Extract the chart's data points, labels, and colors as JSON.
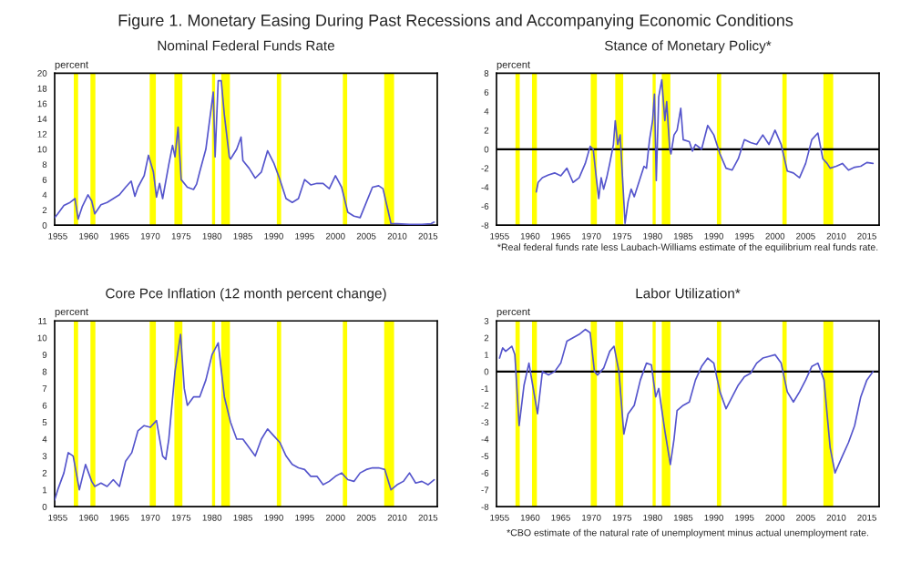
{
  "chart_data": [
    {
      "type": "line",
      "title": "Nominal Federal Funds Rate",
      "ylabel": "percent",
      "annotations": [
        "Figure 1. Monetary Easing During Past Recessions and Accompanying Economic Conditions"
      ],
      "xlim": [
        1954.5,
        2016.5
      ],
      "xticks": [
        1955,
        1960,
        1965,
        1970,
        1975,
        1980,
        1985,
        1990,
        1995,
        2000,
        2005,
        2010,
        2015
      ],
      "ylim": [
        0,
        20
      ],
      "yticks": [
        0,
        2,
        4,
        6,
        8,
        10,
        12,
        14,
        16,
        18,
        20
      ],
      "grid": false,
      "legend": false,
      "bands": [
        {
          "axis": "x",
          "from": 1957.6,
          "to": 1958.3,
          "color": "#ffff00"
        },
        {
          "axis": "x",
          "from": 1960.3,
          "to": 1961.1,
          "color": "#ffff00"
        },
        {
          "axis": "x",
          "from": 1969.9,
          "to": 1970.9,
          "color": "#ffff00"
        },
        {
          "axis": "x",
          "from": 1973.9,
          "to": 1975.2,
          "color": "#ffff00"
        },
        {
          "axis": "x",
          "from": 1980.0,
          "to": 1980.5,
          "color": "#ffff00"
        },
        {
          "axis": "x",
          "from": 1981.5,
          "to": 1982.9,
          "color": "#ffff00"
        },
        {
          "axis": "x",
          "from": 1990.5,
          "to": 1991.2,
          "color": "#ffff00"
        },
        {
          "axis": "x",
          "from": 2001.2,
          "to": 2001.9,
          "color": "#ffff00"
        },
        {
          "axis": "x",
          "from": 2007.9,
          "to": 2009.5,
          "color": "#ffff00"
        }
      ],
      "series": [
        {
          "color": "#5555cc",
          "x": [
            1954.5,
            1955,
            1956,
            1957,
            1957.8,
            1958.3,
            1959,
            1959.9,
            1960.5,
            1961,
            1962,
            1963,
            1964,
            1965,
            1966,
            1966.9,
            1967.5,
            1968,
            1969,
            1969.7,
            1970.5,
            1971,
            1971.5,
            1972,
            1973,
            1973.6,
            1974,
            1974.5,
            1975,
            1976,
            1977,
            1977.5,
            1978,
            1979,
            1980.2,
            1980.5,
            1981,
            1981.5,
            1982,
            1982.8,
            1983,
            1984,
            1984.7,
            1985,
            1986,
            1987,
            1988,
            1989,
            1990,
            1991,
            1992,
            1993,
            1994,
            1995,
            1996,
            1997,
            1998,
            1999,
            2000,
            2001,
            2002,
            2003,
            2004,
            2005,
            2006,
            2007,
            2007.7,
            2008.5,
            2009,
            2010,
            2012,
            2014,
            2015.5,
            2016
          ],
          "values": [
            1.0,
            1.5,
            2.6,
            3.0,
            3.5,
            0.8,
            2.5,
            4.0,
            3.2,
            1.5,
            2.7,
            3.0,
            3.5,
            4.0,
            5.0,
            5.8,
            3.8,
            5.0,
            6.5,
            9.2,
            7.0,
            3.7,
            5.5,
            3.5,
            8.0,
            10.5,
            9.0,
            12.9,
            6.0,
            5.0,
            4.7,
            5.4,
            7.0,
            10.0,
            17.5,
            9.0,
            19.0,
            19.0,
            14.5,
            9.0,
            8.7,
            10.0,
            11.6,
            8.5,
            7.5,
            6.2,
            7.0,
            9.8,
            8.2,
            6.0,
            3.5,
            3.0,
            3.5,
            6.0,
            5.3,
            5.5,
            5.5,
            4.8,
            6.5,
            5.0,
            1.7,
            1.2,
            1.0,
            3.0,
            5.0,
            5.2,
            4.8,
            2.0,
            0.2,
            0.2,
            0.1,
            0.1,
            0.2,
            0.4
          ]
        }
      ]
    },
    {
      "type": "line",
      "title": "Stance of Monetary Policy*",
      "ylabel": "percent",
      "annotations": [
        "*Real federal funds rate less Laubach-Williams estimate of the equilibrium real funds rate."
      ],
      "xlim": [
        1954.5,
        2017
      ],
      "xticks": [
        1955,
        1960,
        1965,
        1970,
        1975,
        1980,
        1985,
        1990,
        1995,
        2000,
        2005,
        2010,
        2015
      ],
      "ylim": [
        -8,
        8
      ],
      "yticks": [
        -8,
        -6,
        -4,
        -2,
        0,
        2,
        4,
        6,
        8
      ],
      "grid": false,
      "legend": false,
      "ref_lines": [
        {
          "axis": "y",
          "value": 0,
          "color": "#000000"
        }
      ],
      "bands": [
        {
          "axis": "x",
          "from": 1957.6,
          "to": 1958.3,
          "color": "#ffff00"
        },
        {
          "axis": "x",
          "from": 1960.3,
          "to": 1961.1,
          "color": "#ffff00"
        },
        {
          "axis": "x",
          "from": 1969.9,
          "to": 1970.9,
          "color": "#ffff00"
        },
        {
          "axis": "x",
          "from": 1973.9,
          "to": 1975.2,
          "color": "#ffff00"
        },
        {
          "axis": "x",
          "from": 1980.0,
          "to": 1980.5,
          "color": "#ffff00"
        },
        {
          "axis": "x",
          "from": 1981.5,
          "to": 1982.9,
          "color": "#ffff00"
        },
        {
          "axis": "x",
          "from": 1990.5,
          "to": 1991.2,
          "color": "#ffff00"
        },
        {
          "axis": "x",
          "from": 2001.2,
          "to": 2001.9,
          "color": "#ffff00"
        },
        {
          "axis": "x",
          "from": 2007.9,
          "to": 2009.5,
          "color": "#ffff00"
        }
      ],
      "series": [
        {
          "color": "#5555cc",
          "x": [
            1961,
            1961.3,
            1962,
            1963,
            1964,
            1965,
            1966,
            1967,
            1968,
            1969,
            1969.8,
            1970.3,
            1970.8,
            1971.2,
            1971.6,
            1972,
            1972.5,
            1973,
            1973.6,
            1973.9,
            1974.3,
            1974.7,
            1975,
            1975.5,
            1976,
            1976.5,
            1977,
            1977.5,
            1978,
            1978.6,
            1979,
            1979.5,
            1980,
            1980.3,
            1980.6,
            1981,
            1981.5,
            1982,
            1982.3,
            1982.8,
            1983,
            1983.5,
            1984,
            1984.6,
            1985,
            1986,
            1986.5,
            1987,
            1988,
            1989,
            1990,
            1991,
            1992,
            1993,
            1994,
            1995,
            1996,
            1997,
            1998,
            1999,
            2000,
            2001,
            2002,
            2003,
            2004,
            2005,
            2006,
            2007,
            2007.8,
            2008.5,
            2009,
            2010,
            2011,
            2012,
            2013,
            2014,
            2015,
            2016
          ],
          "values": [
            -4.5,
            -3.5,
            -3.0,
            -2.7,
            -2.5,
            -2.8,
            -2.0,
            -3.5,
            -3.0,
            -1.5,
            0.3,
            0.0,
            -3.0,
            -5.2,
            -3.0,
            -4.2,
            -3.0,
            -1.5,
            0.5,
            3.0,
            0.5,
            1.5,
            -2.0,
            -7.8,
            -5.5,
            -4.2,
            -5.0,
            -4.0,
            -3.0,
            -1.8,
            -2.0,
            1.0,
            3.0,
            5.8,
            -3.3,
            5.5,
            7.3,
            3.0,
            5.0,
            0.0,
            -0.5,
            1.5,
            2.0,
            4.3,
            1.0,
            0.8,
            -0.2,
            0.5,
            0.0,
            2.5,
            1.5,
            -0.5,
            -2.0,
            -2.2,
            -1.0,
            1.0,
            0.7,
            0.5,
            1.5,
            0.5,
            2.0,
            0.5,
            -2.3,
            -2.5,
            -3.0,
            -1.5,
            1.0,
            1.7,
            -1.0,
            -1.5,
            -2.0,
            -1.8,
            -1.5,
            -2.2,
            -1.9,
            -1.8,
            -1.4,
            -1.5
          ]
        }
      ]
    },
    {
      "type": "line",
      "title": "Core Pce Inflation (12 month percent change)",
      "ylabel": "percent",
      "xlim": [
        1954.5,
        2016.5
      ],
      "xticks": [
        1955,
        1960,
        1965,
        1970,
        1975,
        1980,
        1985,
        1990,
        1995,
        2000,
        2005,
        2010,
        2015
      ],
      "ylim": [
        0,
        11
      ],
      "yticks": [
        0,
        1,
        2,
        3,
        4,
        5,
        6,
        7,
        8,
        9,
        10,
        11
      ],
      "grid": false,
      "legend": false,
      "bands": [
        {
          "axis": "x",
          "from": 1957.6,
          "to": 1958.3,
          "color": "#ffff00"
        },
        {
          "axis": "x",
          "from": 1960.3,
          "to": 1961.1,
          "color": "#ffff00"
        },
        {
          "axis": "x",
          "from": 1969.9,
          "to": 1970.9,
          "color": "#ffff00"
        },
        {
          "axis": "x",
          "from": 1973.9,
          "to": 1975.2,
          "color": "#ffff00"
        },
        {
          "axis": "x",
          "from": 1980.0,
          "to": 1980.5,
          "color": "#ffff00"
        },
        {
          "axis": "x",
          "from": 1981.5,
          "to": 1982.9,
          "color": "#ffff00"
        },
        {
          "axis": "x",
          "from": 1990.5,
          "to": 1991.2,
          "color": "#ffff00"
        },
        {
          "axis": "x",
          "from": 2001.2,
          "to": 2001.9,
          "color": "#ffff00"
        },
        {
          "axis": "x",
          "from": 2007.9,
          "to": 2009.5,
          "color": "#ffff00"
        }
      ],
      "series": [
        {
          "color": "#5555cc",
          "x": [
            1954.5,
            1955,
            1956,
            1956.7,
            1957.5,
            1958.5,
            1959.5,
            1960.5,
            1961,
            1962,
            1963,
            1964,
            1965,
            1966,
            1967,
            1968,
            1969,
            1970,
            1971,
            1972,
            1972.5,
            1973,
            1974,
            1974.9,
            1975.5,
            1976,
            1977,
            1978,
            1979,
            1980,
            1981,
            1982,
            1983,
            1984,
            1985,
            1986,
            1987,
            1988,
            1989,
            1990,
            1991,
            1992,
            1993,
            1994,
            1995,
            1996,
            1997,
            1998,
            1999,
            2000,
            2001,
            2002,
            2003,
            2004,
            2005,
            2006,
            2007,
            2008,
            2009,
            2010,
            2011,
            2012,
            2013,
            2014,
            2015,
            2016
          ],
          "values": [
            0.4,
            1.0,
            2.0,
            3.2,
            3.0,
            1.0,
            2.5,
            1.5,
            1.2,
            1.4,
            1.2,
            1.6,
            1.2,
            2.7,
            3.2,
            4.5,
            4.8,
            4.7,
            5.1,
            3.0,
            2.8,
            4.0,
            8.0,
            10.2,
            7.0,
            6.0,
            6.5,
            6.5,
            7.5,
            9.0,
            9.7,
            6.5,
            5.0,
            4.0,
            4.0,
            3.5,
            3.0,
            4.0,
            4.6,
            4.2,
            3.8,
            3.0,
            2.5,
            2.3,
            2.2,
            1.8,
            1.8,
            1.3,
            1.5,
            1.8,
            2.0,
            1.6,
            1.5,
            2.0,
            2.2,
            2.3,
            2.3,
            2.2,
            1.0,
            1.3,
            1.5,
            2.0,
            1.4,
            1.5,
            1.3,
            1.6
          ]
        }
      ]
    },
    {
      "type": "line",
      "title": "Labor Utilization*",
      "ylabel": "percent",
      "annotations": [
        "*CBO estimate of the natural rate of unemployment minus actual unemployment rate."
      ],
      "xlim": [
        1954.5,
        2017
      ],
      "xticks": [
        1955,
        1960,
        1965,
        1970,
        1975,
        1980,
        1985,
        1990,
        1995,
        2000,
        2005,
        2010,
        2015
      ],
      "ylim": [
        -8,
        3
      ],
      "yticks": [
        -8,
        -7,
        -6,
        -5,
        -4,
        -3,
        -2,
        -1,
        0,
        1,
        2,
        3
      ],
      "grid": false,
      "legend": false,
      "ref_lines": [
        {
          "axis": "y",
          "value": 0,
          "color": "#000000"
        }
      ],
      "bands": [
        {
          "axis": "x",
          "from": 1957.6,
          "to": 1958.3,
          "color": "#ffff00"
        },
        {
          "axis": "x",
          "from": 1960.3,
          "to": 1961.1,
          "color": "#ffff00"
        },
        {
          "axis": "x",
          "from": 1969.9,
          "to": 1970.9,
          "color": "#ffff00"
        },
        {
          "axis": "x",
          "from": 1973.9,
          "to": 1975.2,
          "color": "#ffff00"
        },
        {
          "axis": "x",
          "from": 1980.0,
          "to": 1980.5,
          "color": "#ffff00"
        },
        {
          "axis": "x",
          "from": 1981.5,
          "to": 1982.9,
          "color": "#ffff00"
        },
        {
          "axis": "x",
          "from": 1990.5,
          "to": 1991.2,
          "color": "#ffff00"
        },
        {
          "axis": "x",
          "from": 2001.2,
          "to": 2001.9,
          "color": "#ffff00"
        },
        {
          "axis": "x",
          "from": 2007.9,
          "to": 2009.5,
          "color": "#ffff00"
        }
      ],
      "series": [
        {
          "color": "#5555cc",
          "x": [
            1955,
            1955.5,
            1956,
            1957,
            1957.5,
            1958.2,
            1959,
            1959.8,
            1960.5,
            1961.2,
            1962,
            1963,
            1964,
            1965,
            1966,
            1967,
            1968,
            1969,
            1969.8,
            1970.5,
            1971,
            1972,
            1973,
            1973.7,
            1974.5,
            1975.3,
            1976,
            1977,
            1978,
            1979,
            1979.8,
            1980.5,
            1981,
            1982,
            1982.9,
            1983.5,
            1984,
            1985,
            1986,
            1987,
            1988,
            1989,
            1990,
            1991,
            1992,
            1993,
            1994,
            1995,
            1996,
            1997,
            1998,
            1999,
            2000,
            2001,
            2002,
            2003,
            2004,
            2005,
            2006,
            2007,
            2008,
            2009,
            2009.8,
            2011,
            2012,
            2013,
            2014,
            2015,
            2016
          ],
          "values": [
            0.8,
            1.4,
            1.2,
            1.5,
            1.0,
            -3.2,
            -0.8,
            0.5,
            -1.0,
            -2.5,
            0.0,
            -0.2,
            0.0,
            0.5,
            1.8,
            2.0,
            2.2,
            2.5,
            2.3,
            0.0,
            -0.2,
            0.2,
            1.2,
            1.5,
            0.0,
            -3.7,
            -2.5,
            -2.0,
            -0.5,
            0.5,
            0.4,
            -1.5,
            -1.0,
            -3.5,
            -5.5,
            -4.0,
            -2.3,
            -2.0,
            -1.8,
            -0.5,
            0.3,
            0.8,
            0.5,
            -1.2,
            -2.2,
            -1.5,
            -0.8,
            -0.3,
            -0.1,
            0.5,
            0.8,
            0.9,
            1.0,
            0.5,
            -1.2,
            -1.8,
            -1.2,
            -0.5,
            0.3,
            0.5,
            -0.5,
            -4.5,
            -6.0,
            -5.0,
            -4.2,
            -3.2,
            -1.5,
            -0.5,
            0.0
          ]
        }
      ]
    }
  ]
}
